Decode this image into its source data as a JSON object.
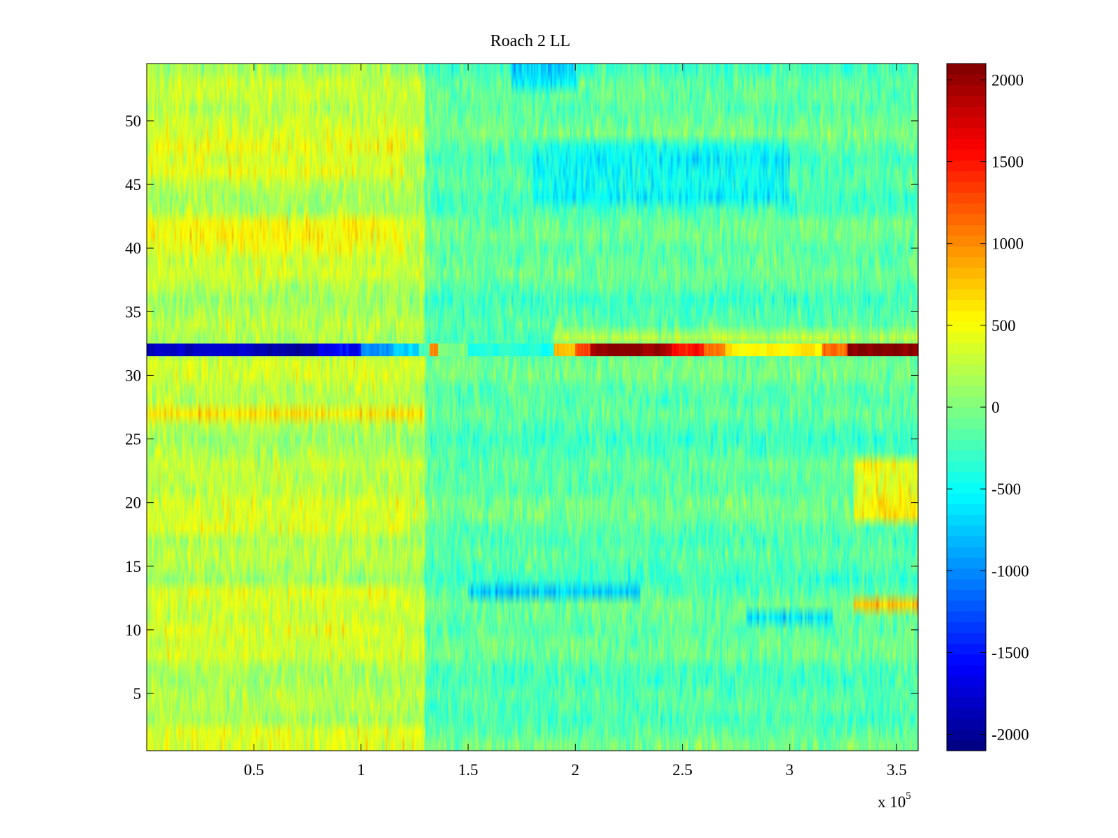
{
  "chart_data": {
    "type": "heatmap",
    "title": "Roach 2 LL",
    "xlabel": "",
    "ylabel": "",
    "x_multiplier": {
      "base": "x 10",
      "exponent": "5"
    },
    "xlim": [
      0,
      3.6
    ],
    "ylim": [
      0.5,
      54.5
    ],
    "xticks": [
      0.5,
      1,
      1.5,
      2,
      2.5,
      3,
      3.5
    ],
    "xtick_labels": [
      "0.5",
      "1",
      "1.5",
      "2",
      "2.5",
      "3",
      "3.5"
    ],
    "yticks": [
      5,
      10,
      15,
      20,
      25,
      30,
      35,
      40,
      45,
      50
    ],
    "ytick_labels": [
      "5",
      "10",
      "15",
      "20",
      "25",
      "30",
      "35",
      "40",
      "45",
      "50"
    ],
    "rows": 54,
    "colormap": "jet",
    "clim": [
      -2100,
      2100
    ],
    "colorbar": {
      "ticks": [
        -2000,
        -1500,
        -1000,
        -500,
        0,
        500,
        1000,
        1500,
        2000
      ],
      "tick_labels": [
        "-2000",
        "-1500",
        "-1000",
        "-500",
        "0",
        "500",
        "1000",
        "1500",
        "2000"
      ]
    },
    "background_level": 0,
    "regions": [
      {
        "x": [
          0,
          1.3
        ],
        "rows": "all",
        "value": 250,
        "note": "warmer, mostly yellow"
      },
      {
        "x": [
          1.3,
          3.6
        ],
        "rows": "all",
        "value": -150,
        "note": "cooler, mostly cyan-green"
      },
      {
        "x": [
          3.3,
          3.6
        ],
        "rows": [
          19,
          23
        ],
        "value": 450
      },
      {
        "x": [
          3.3,
          3.6
        ],
        "rows": [
          12,
          12
        ],
        "value": 700
      },
      {
        "x": [
          3.2,
          3.6
        ],
        "rows": [
          33,
          33
        ],
        "value": 500
      },
      {
        "x": [
          1.9,
          3.6
        ],
        "rows": [
          33,
          33
        ],
        "value": 300
      },
      {
        "x": [
          0,
          1.3
        ],
        "rows": [
          27,
          27
        ],
        "value": 550
      },
      {
        "x": [
          0,
          1.2
        ],
        "rows": [
          13,
          13
        ],
        "value": 450
      },
      {
        "x": [
          0,
          1.2
        ],
        "rows": [
          18,
          18
        ],
        "value": 450
      },
      {
        "x": [
          0,
          1.2
        ],
        "rows": [
          10,
          10
        ],
        "value": 400
      },
      {
        "x": [
          0,
          1.3
        ],
        "rows": [
          2,
          2
        ],
        "value": 400
      },
      {
        "x": [
          0,
          1.2
        ],
        "rows": [
          40,
          42
        ],
        "value": 450
      },
      {
        "x": [
          0,
          1.2
        ],
        "rows": [
          46,
          48
        ],
        "value": 450
      },
      {
        "x": [
          1.5,
          2.3
        ],
        "rows": [
          13,
          13
        ],
        "value": -700
      },
      {
        "x": [
          2.8,
          3.2
        ],
        "rows": [
          11,
          11
        ],
        "value": -650
      },
      {
        "x": [
          1.8,
          3.0
        ],
        "rows": [
          44,
          48
        ],
        "value": -450
      },
      {
        "x": [
          1.7,
          2.0
        ],
        "rows": [
          53,
          54
        ],
        "value": -600
      }
    ],
    "row_32_segments": [
      {
        "x_start": 0,
        "x_end": 0.5,
        "value": -1800
      },
      {
        "x_start": 0.5,
        "x_end": 0.8,
        "value": -1900
      },
      {
        "x_start": 0.8,
        "x_end": 1.0,
        "value": -1600
      },
      {
        "x_start": 1.0,
        "x_end": 1.15,
        "value": -1000
      },
      {
        "x_start": 1.15,
        "x_end": 1.27,
        "value": -700
      },
      {
        "x_start": 1.27,
        "x_end": 1.32,
        "value": -200
      },
      {
        "x_start": 1.32,
        "x_end": 1.36,
        "value": 1000
      },
      {
        "x_start": 1.36,
        "x_end": 1.5,
        "value": 0
      },
      {
        "x_start": 1.5,
        "x_end": 1.9,
        "value": -400
      },
      {
        "x_start": 1.9,
        "x_end": 2.0,
        "value": 800
      },
      {
        "x_start": 2.0,
        "x_end": 2.07,
        "value": 1300
      },
      {
        "x_start": 2.07,
        "x_end": 2.45,
        "value": 2000
      },
      {
        "x_start": 2.45,
        "x_end": 2.6,
        "value": 1500
      },
      {
        "x_start": 2.6,
        "x_end": 2.7,
        "value": 1100
      },
      {
        "x_start": 2.7,
        "x_end": 3.15,
        "value": 600
      },
      {
        "x_start": 3.15,
        "x_end": 3.27,
        "value": 1100
      },
      {
        "x_start": 3.27,
        "x_end": 3.6,
        "value": 2050
      }
    ]
  }
}
